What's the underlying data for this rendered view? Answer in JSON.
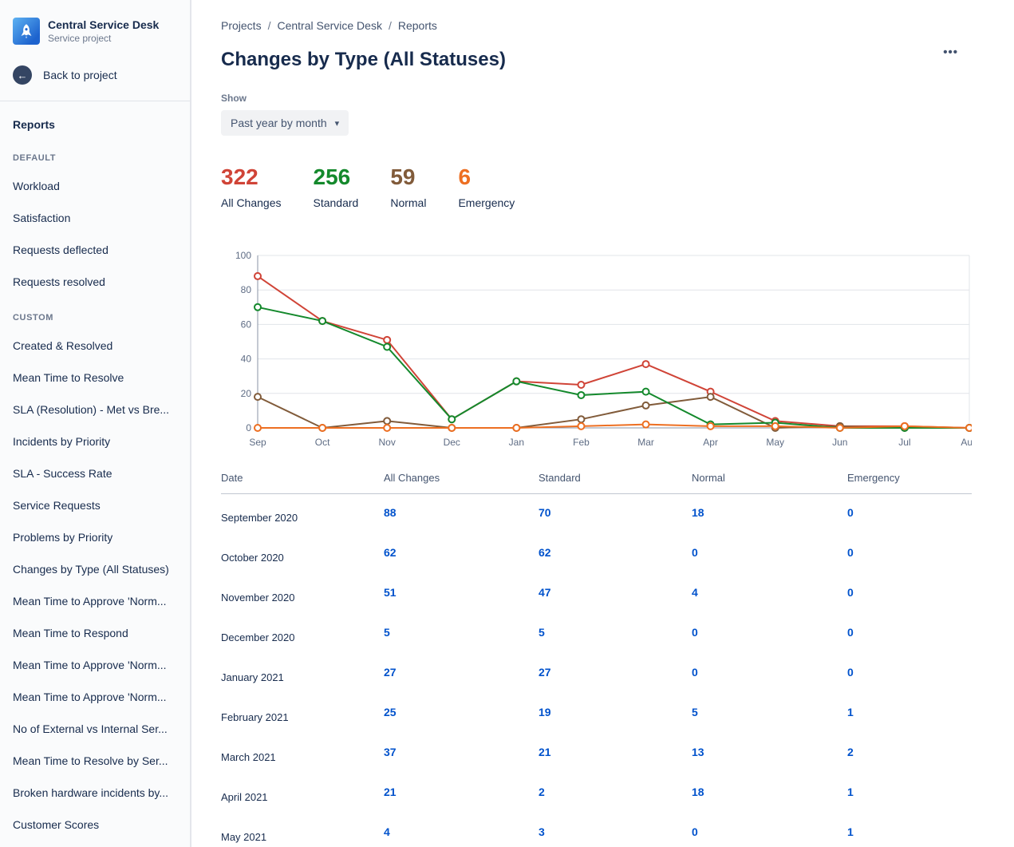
{
  "sidebar": {
    "project": {
      "name": "Central Service Desk",
      "type": "Service project"
    },
    "back_label": "Back to project",
    "reports_label": "Reports",
    "sections": [
      {
        "label": "DEFAULT",
        "items": [
          "Workload",
          "Satisfaction",
          "Requests deflected",
          "Requests resolved"
        ]
      },
      {
        "label": "CUSTOM",
        "items": [
          "Created & Resolved",
          "Mean Time to Resolve",
          "SLA (Resolution) - Met vs Bre...",
          "Incidents by Priority",
          "SLA - Success Rate",
          "Service Requests",
          "Problems by Priority",
          "Changes by Type (All Statuses)",
          "Mean Time to Approve 'Norm...",
          "Mean Time to Respond",
          "Mean Time to Approve 'Norm...",
          "Mean Time to Approve 'Norm...",
          "No of External vs Internal Ser...",
          "Mean Time to Resolve by Ser...",
          "Broken hardware incidents by...",
          "Customer Scores"
        ]
      }
    ]
  },
  "breadcrumb": [
    "Projects",
    "Central Service Desk",
    "Reports"
  ],
  "page_title": "Changes by Type (All Statuses)",
  "show": {
    "label": "Show",
    "value": "Past year by month"
  },
  "icons": {
    "back": "←",
    "more": "•••",
    "chevron_down": "▾"
  },
  "stats": [
    {
      "value": "322",
      "label": "All Changes",
      "color": "#d04437"
    },
    {
      "value": "256",
      "label": "Standard",
      "color": "#14892c"
    },
    {
      "value": "59",
      "label": "Normal",
      "color": "#815b3a"
    },
    {
      "value": "6",
      "label": "Emergency",
      "color": "#ed6f22"
    }
  ],
  "chart_data": {
    "type": "line",
    "categories": [
      "Sep",
      "Oct",
      "Nov",
      "Dec",
      "Jan",
      "Feb",
      "Mar",
      "Apr",
      "May",
      "Jun",
      "Jul",
      "Aug"
    ],
    "series": [
      {
        "name": "All Changes",
        "color": "#d04437",
        "values": [
          88,
          62,
          51,
          5,
          27,
          25,
          37,
          21,
          4,
          1,
          1,
          0
        ]
      },
      {
        "name": "Standard",
        "color": "#14892c",
        "values": [
          70,
          62,
          47,
          5,
          27,
          19,
          21,
          2,
          3,
          0,
          0,
          0
        ]
      },
      {
        "name": "Normal",
        "color": "#815b3a",
        "values": [
          18,
          0,
          4,
          0,
          0,
          5,
          13,
          18,
          0,
          1,
          0,
          0
        ]
      },
      {
        "name": "Emergency",
        "color": "#ed6f22",
        "values": [
          0,
          0,
          0,
          0,
          0,
          1,
          2,
          1,
          1,
          0,
          1,
          0
        ]
      }
    ],
    "ylim": [
      0,
      100
    ],
    "yticks": [
      0,
      20,
      40,
      60,
      80,
      100
    ],
    "grid": true,
    "legend": "none",
    "marker": "open-circle"
  },
  "table": {
    "headers": [
      "Date",
      "All Changes",
      "Standard",
      "Normal",
      "Emergency"
    ],
    "rows": [
      {
        "date": "September 2020",
        "values": [
          88,
          70,
          18,
          0
        ]
      },
      {
        "date": "October 2020",
        "values": [
          62,
          62,
          0,
          0
        ]
      },
      {
        "date": "November 2020",
        "values": [
          51,
          47,
          4,
          0
        ]
      },
      {
        "date": "December 2020",
        "values": [
          5,
          5,
          0,
          0
        ]
      },
      {
        "date": "January 2021",
        "values": [
          27,
          27,
          0,
          0
        ]
      },
      {
        "date": "February 2021",
        "values": [
          25,
          19,
          5,
          1
        ]
      },
      {
        "date": "March 2021",
        "values": [
          37,
          21,
          13,
          2
        ]
      },
      {
        "date": "April 2021",
        "values": [
          21,
          2,
          18,
          1
        ]
      },
      {
        "date": "May 2021",
        "values": [
          4,
          3,
          0,
          1
        ]
      }
    ]
  }
}
